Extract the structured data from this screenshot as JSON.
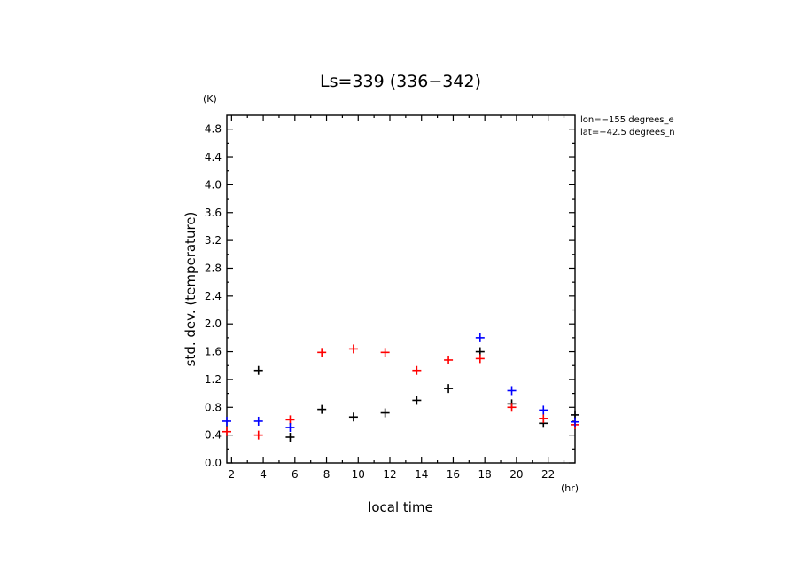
{
  "chart_data": {
    "type": "scatter",
    "title": "Ls=339 (336−342)",
    "xlabel": "local time",
    "ylabel": "std. dev. (temperature)",
    "x_unit": "(hr)",
    "y_unit": "(K)",
    "xlim": [
      1.7,
      23.7
    ],
    "ylim": [
      0.0,
      5.0
    ],
    "x_ticks": [
      2,
      4,
      6,
      8,
      10,
      12,
      14,
      16,
      18,
      20,
      22
    ],
    "y_ticks": [
      0.0,
      0.4,
      0.8,
      1.2,
      1.6,
      2.0,
      2.4,
      2.8,
      3.2,
      3.6,
      4.0,
      4.4,
      4.8
    ],
    "y_tick_labels": [
      "0.0",
      "0.4",
      "0.8",
      "1.2",
      "1.6",
      "2.0",
      "2.4",
      "2.8",
      "3.2",
      "3.6",
      "4.0",
      "4.4",
      "4.8"
    ],
    "annotations": [
      "lon=−155 degrees_e",
      "lat=−42.5 degrees_n"
    ],
    "grid": false,
    "marker": "+",
    "series": [
      {
        "color": "#000000",
        "x": [
          3.7,
          5.7,
          7.7,
          9.7,
          11.7,
          13.7,
          15.7,
          17.7,
          19.7,
          21.7,
          23.7
        ],
        "y": [
          1.33,
          0.37,
          0.77,
          0.66,
          0.72,
          0.9,
          1.07,
          1.6,
          0.85,
          0.57,
          0.69
        ]
      },
      {
        "color": "#ff0000",
        "x": [
          1.7,
          3.7,
          5.7,
          7.7,
          9.7,
          11.7,
          13.7,
          15.7,
          17.7,
          19.7,
          21.7,
          23.7
        ],
        "y": [
          0.45,
          0.4,
          0.62,
          1.59,
          1.64,
          1.59,
          1.33,
          1.48,
          1.5,
          0.8,
          0.64,
          0.55
        ]
      },
      {
        "color": "#0000ff",
        "x": [
          1.7,
          3.7,
          5.7,
          17.7,
          19.7,
          21.7,
          23.7
        ],
        "y": [
          0.6,
          0.6,
          0.51,
          1.8,
          1.04,
          0.76,
          0.59
        ]
      }
    ]
  }
}
